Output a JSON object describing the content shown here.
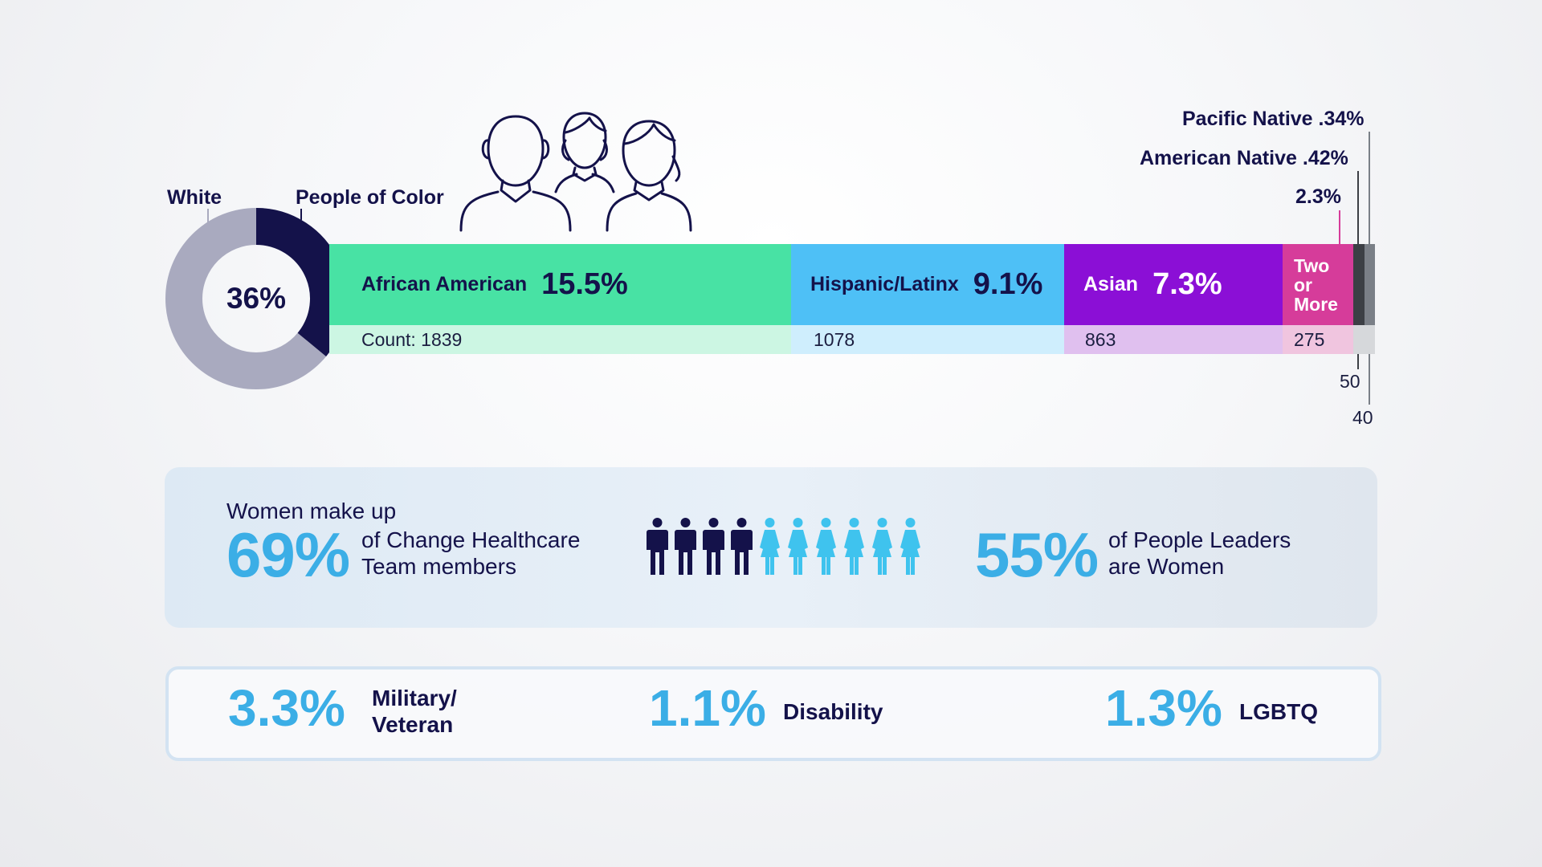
{
  "chart_data": {
    "type": "bar",
    "title": "",
    "donut": {
      "labels": [
        "White",
        "People of Color"
      ],
      "center_value": "36%",
      "people_of_color_share": 0.36
    },
    "segments": [
      {
        "name": "African American",
        "pct_label": "15.5%",
        "value": 15.5,
        "count_label": "Count: 1839",
        "count": 1839,
        "color": "#48e2a4",
        "light": "#ccf6e3"
      },
      {
        "name": "Hispanic/Latinx",
        "pct_label": "9.1%",
        "value": 9.1,
        "count_label": "1078",
        "count": 1078,
        "color": "#4ec0f6",
        "light": "#cfeefd"
      },
      {
        "name": "Asian",
        "pct_label": "7.3%",
        "value": 7.3,
        "count_label": "863",
        "count": 863,
        "color": "#8b0fd6",
        "light": "#e0c0ef"
      },
      {
        "name": "Two or More",
        "pct_label": "2.3%",
        "value": 2.3,
        "count_label": "275",
        "count": 275,
        "color": "#d63c9a",
        "light": "#f0c5df"
      },
      {
        "name": "American Native",
        "pct_label": ".42%",
        "value": 0.42,
        "count_label": "50",
        "count": 50,
        "color": "#3c3f45",
        "light": "#c8c9cc"
      },
      {
        "name": "Pacific Native",
        "pct_label": ".34%",
        "value": 0.34,
        "count_label": "40",
        "count": 40,
        "color": "#7a7f87",
        "light": "#d6d8db"
      }
    ],
    "colors": {
      "white_segment": "#a9aabf",
      "people_of_color_segment": "#14124a"
    }
  },
  "labels": {
    "white": "White",
    "people_of_color": "People of Color",
    "two_or_more_lines": [
      "Two",
      "or",
      "More"
    ],
    "two_or_more_pct": "2.3%",
    "american_native": "American Native .42%",
    "pacific_native": "Pacific Native .34%",
    "american_native_count": "50",
    "pacific_native_count": "40"
  },
  "women": {
    "intro": "Women make up",
    "team_pct": "69%",
    "team_text_1": "of Change Healthcare",
    "team_text_2": "Team members",
    "leaders_pct": "55%",
    "leaders_text_1": "of People Leaders",
    "leaders_text_2": "are Women",
    "icons_men": 4,
    "icons_women": 6
  },
  "stats": [
    {
      "pct": "3.3%",
      "label_1": "Military/",
      "label_2": "Veteran"
    },
    {
      "pct": "1.1%",
      "label_1": "Disability",
      "label_2": ""
    },
    {
      "pct": "1.3%",
      "label_1": "LGBTQ",
      "label_2": ""
    }
  ],
  "icons": {
    "people_group": "people-group-icon",
    "man": "man-icon",
    "woman": "woman-icon"
  }
}
